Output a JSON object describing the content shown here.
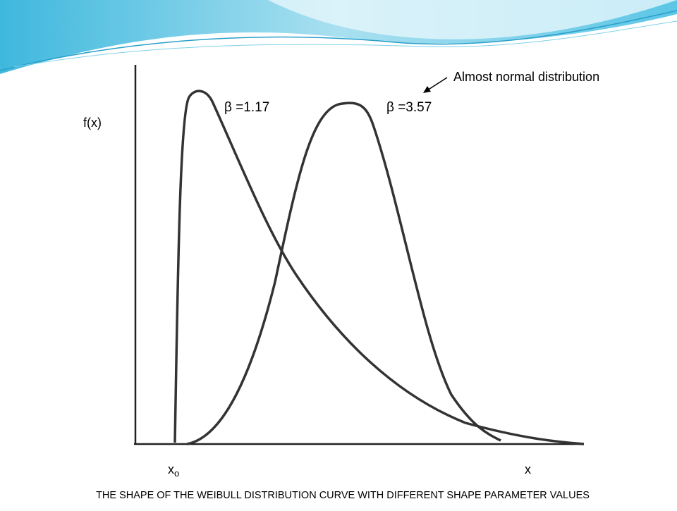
{
  "slide": {
    "annotation": "Almost normal distribution",
    "curves": [
      {
        "label": "β =1.17"
      },
      {
        "label": "β =3.57"
      }
    ],
    "axis_labels": {
      "y": "f(x)",
      "x": "x",
      "origin": {
        "base": "x",
        "sub": "o"
      }
    },
    "caption": "THE SHAPE OF THE WEIBULL DISTRIBUTION CURVE WITH DIFFERENT SHAPE PARAMETER VALUES"
  }
}
